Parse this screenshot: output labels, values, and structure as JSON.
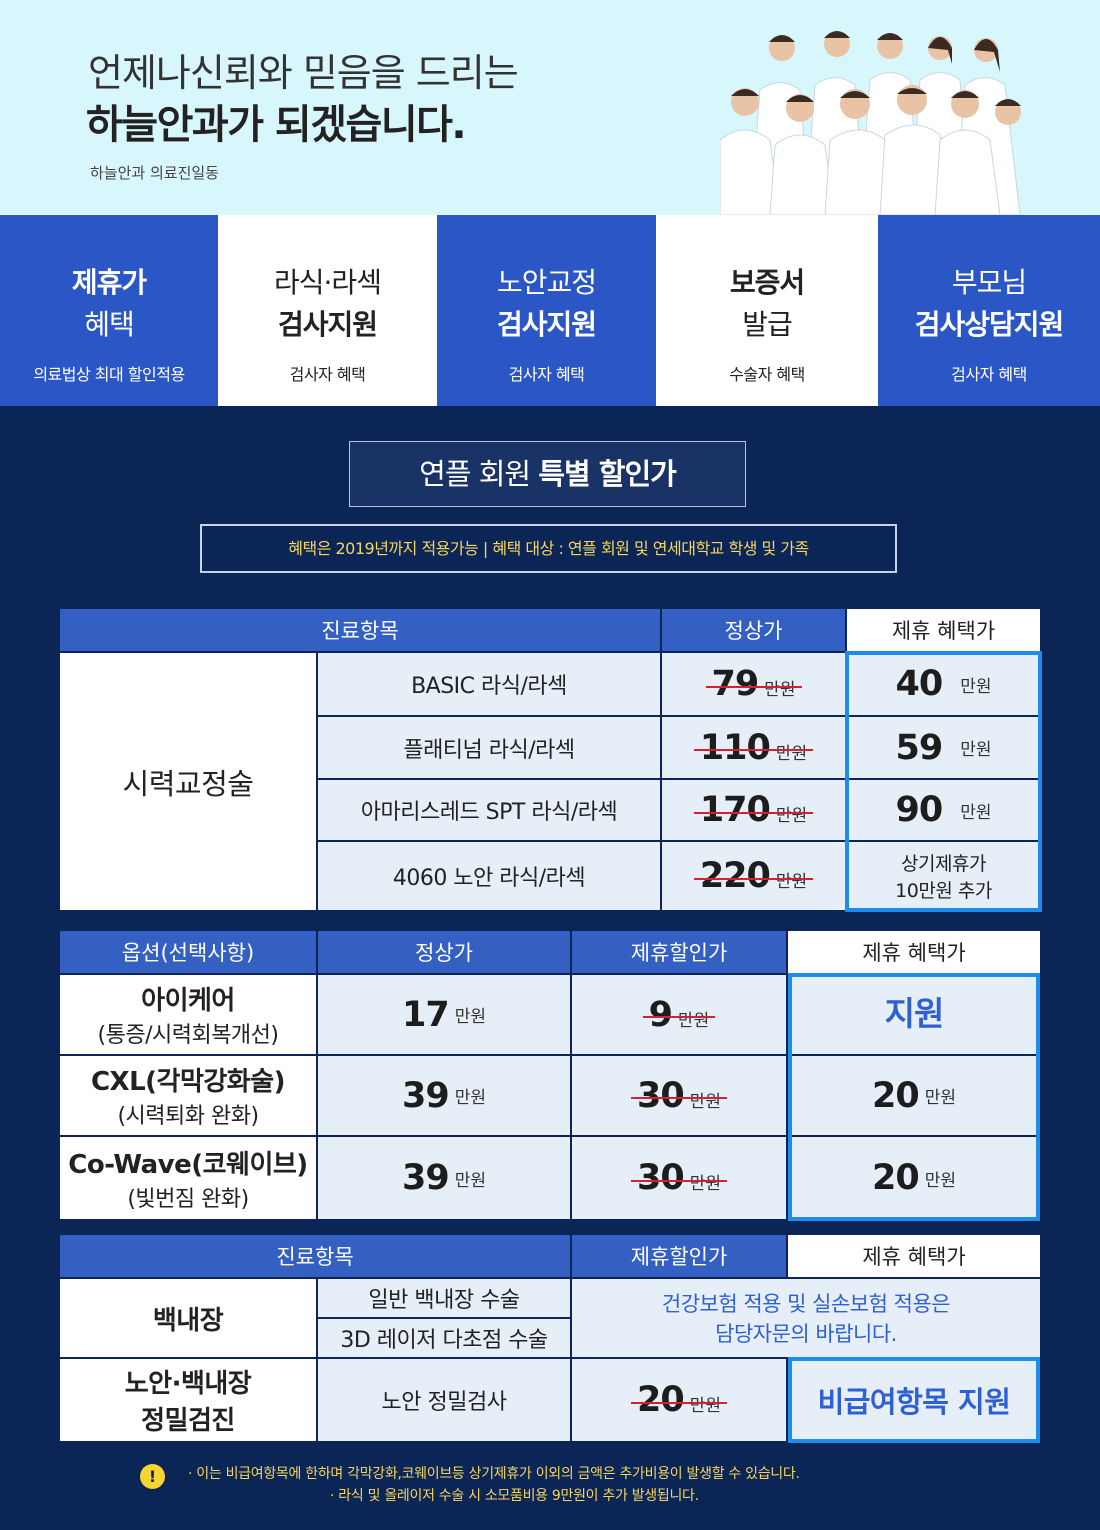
{
  "hero": {
    "line1": "언제나신뢰와 믿음을 드리는",
    "line2": "하늘안과가 되겠습니다.",
    "signature": "하늘안과 의료진일동"
  },
  "benefits": [
    {
      "line1": "제휴가",
      "line2": "혜택",
      "sub": "의료법상 최대 할인적용"
    },
    {
      "line1": "라식·라섹",
      "line2": "검사지원",
      "sub": "검사자 혜택"
    },
    {
      "line1": "노안교정",
      "line2": "검사지원",
      "sub": "검사자 혜택"
    },
    {
      "line1": "보증서",
      "line2": "발급",
      "sub": "수술자 혜택"
    },
    {
      "line1": "부모님",
      "line2": "검사상담지원",
      "sub": "검사자 혜택"
    }
  ],
  "title": {
    "normal": "연플 회원 ",
    "bold": "특별 할인가"
  },
  "notice": "혜택은 2019년까지 적용가능  |  혜택 대상 : 연플 회원 및 연세대학교 학생 및 가족",
  "unit": "만원",
  "table1": {
    "headers": {
      "item": "진료항목",
      "regular": "정상가",
      "benefit": "제휴 혜택가"
    },
    "category": "시력교정술",
    "rows": [
      {
        "name": "BASIC 라식/라섹",
        "regular": "79",
        "benefit": "40"
      },
      {
        "name": "플래티넘 라식/라섹",
        "regular": "110",
        "benefit": "59"
      },
      {
        "name": "아마리스레드 SPT 라식/라섹",
        "regular": "170",
        "benefit": "90"
      },
      {
        "name": "4060 노안 라식/라섹",
        "regular": "220",
        "benefit_line1": "상기제휴가",
        "benefit_line2": "10만원 추가"
      }
    ]
  },
  "table2": {
    "headers": {
      "option": "옵션(선택사항)",
      "regular": "정상가",
      "discount": "제휴할인가",
      "benefit": "제휴 혜택가"
    },
    "rows": [
      {
        "name": "아이케어",
        "sub": "(통증/시력회복개선)",
        "regular": "17",
        "discount": "9",
        "benefit": "지원"
      },
      {
        "name": "CXL(각막강화술)",
        "sub": "(시력퇴화 완화)",
        "regular": "39",
        "discount": "30",
        "benefit": "20"
      },
      {
        "name": "Co-Wave(코웨이브)",
        "sub": "(빛번짐 완화)",
        "regular": "39",
        "discount": "30",
        "benefit": "20"
      }
    ]
  },
  "table3": {
    "headers": {
      "item": "진료항목",
      "discount": "제휴할인가",
      "benefit": "제휴 혜택가"
    },
    "cataract": {
      "name": "백내장",
      "sub1": "일반 백내장 수술",
      "sub2": "3D 레이저 다초점 수술",
      "info1": "건강보험 적용 및 실손보험 적용은",
      "info2": "담당자문의 바랍니다."
    },
    "checkup": {
      "line1": "노안·백내장",
      "line2": "정밀검진",
      "sub": "노안 정밀검사",
      "discount": "20",
      "benefit": "비급여항목 지원"
    }
  },
  "footnotes": {
    "mark": "!",
    "line1": "· 이는 비급여항목에 한하며 각막강화,코웨이브등 상기제휴가 이외의 금액은 추가비용이 발생할 수 있습니다.",
    "line2": "· 라식 및 올레이저 수술 시 소모품비용 9만원이 추가 발생됩니다."
  },
  "colors": {
    "primary": "#2b56c6",
    "navy": "#0c2557",
    "highlight": "#1d8cec",
    "strike": "#d42132",
    "notice": "#f5d65b"
  }
}
